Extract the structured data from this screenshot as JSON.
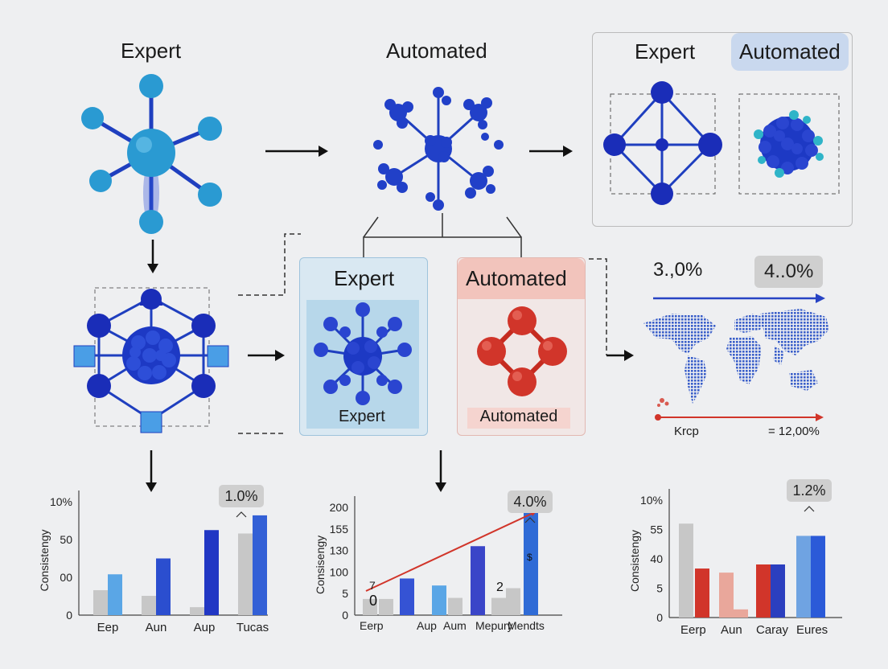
{
  "top": {
    "expert_title": "Expert",
    "automated_title": "Automated",
    "compare_expert": "Expert",
    "compare_automated": "Automated"
  },
  "middle": {
    "expert_title": "Expert",
    "expert_caption": "Expert",
    "automated_title": "Automated",
    "automated_caption": "Automated"
  },
  "map": {
    "left_value": "3.,0%",
    "right_value": "4..0%",
    "bottom_left": "Krcp",
    "bottom_right": "= 12,00%"
  },
  "colors": {
    "blue": "#1f3fbf",
    "light_blue": "#3fa3d4",
    "red": "#d1352a",
    "gray_bar": "#c7c7c7"
  },
  "chart_data": [
    {
      "type": "bar",
      "ylabel": "Consistengy",
      "yticks": [
        "10%",
        "50",
        "00",
        "0"
      ],
      "categories": [
        "Eep",
        "Aun",
        "Aup",
        "Tucas"
      ],
      "series": [
        {
          "values": [
            22,
            17,
            7,
            72
          ]
        },
        {
          "values": [
            36,
            50,
            75,
            88
          ]
        }
      ],
      "annotation": "1.0%",
      "ylim": [
        0,
        100
      ]
    },
    {
      "type": "bar",
      "ylabel": "Consisengy",
      "yticks": [
        "200",
        "155",
        "130",
        "100",
        "5",
        "0"
      ],
      "categories": [
        "Eerp",
        "Aup",
        "Aum",
        "Mepury",
        "Mendts"
      ],
      "bars": [
        30,
        30,
        68,
        55,
        32,
        128,
        32,
        50,
        198
      ],
      "extra_labels": [
        "7",
        "0",
        "2",
        "$"
      ],
      "annotation": "4.0%",
      "ylim": [
        0,
        200
      ]
    },
    {
      "type": "bar",
      "ylabel": "Consistengy",
      "yticks": [
        "10%",
        "55",
        "40",
        "5",
        "0"
      ],
      "categories": [
        "Eerp",
        "Aun",
        "Caray",
        "Eures"
      ],
      "bars": [
        {
          "v": 92,
          "c": "#c7c7c7"
        },
        {
          "v": 48,
          "c": "#d1352a"
        },
        {
          "v": 44,
          "c": "#e9a79b"
        },
        {
          "v": 8,
          "c": "#e9a79b"
        },
        {
          "v": 52,
          "c": "#d1352a"
        },
        {
          "v": 52,
          "c": "#2b3fbf"
        },
        {
          "v": 80,
          "c": "#6fa3e2"
        },
        {
          "v": 80,
          "c": "#2b5ad8"
        }
      ],
      "annotation": "1.2%",
      "ylim": [
        0,
        115
      ]
    }
  ]
}
